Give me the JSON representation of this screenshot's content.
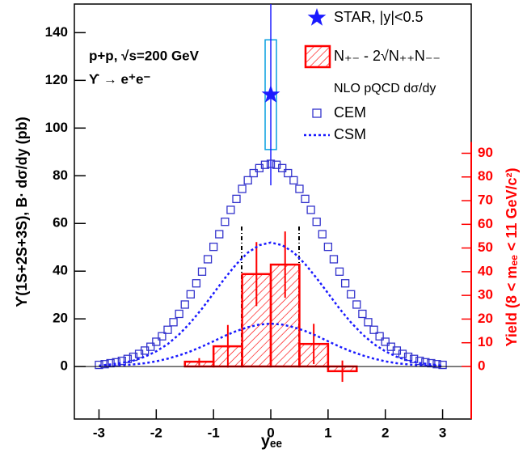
{
  "chart_data": {
    "type": "combo",
    "annotations": [
      "p+p, √s=200 GeV",
      "ϒ → e⁺e⁻"
    ],
    "x_label": "yₑₑ",
    "y_label": "ϒ(1S+2S+3S), B· dσ/dy (pb)",
    "y2_label": "Yield (8 < mₑₑ < 11 GeV/c²)",
    "legend_title": "NLO pQCD dσ/dy",
    "xlim": [
      -3.43,
      3.5
    ],
    "xticks": [
      -3,
      -2,
      -1,
      0,
      1,
      2,
      3
    ],
    "ylim": [
      -22,
      152
    ],
    "yticks": [
      0,
      20,
      40,
      60,
      80,
      100,
      120,
      140
    ],
    "y2lim": [
      -22.2,
      153
    ],
    "y2ticks": [
      0,
      10,
      20,
      30,
      40,
      50,
      60,
      70,
      80,
      90
    ],
    "series": [
      {
        "name": "STAR, |y|<0.5",
        "type": "point",
        "color": "#1a1aff",
        "x": [
          0
        ],
        "values": [
          114
        ],
        "errors": [
          38
        ],
        "sys_errors": [
          23
        ]
      },
      {
        "name": "N₊₋ - 2√N₊₊N₋₋",
        "type": "histogram",
        "axis": "y2",
        "color": "#ff0000",
        "bins": [
          -2,
          -1.5,
          -1,
          -0.5,
          0,
          0.5,
          1,
          1.5,
          2
        ],
        "values": [
          0,
          2,
          8.5,
          39,
          43,
          9.5,
          -2,
          0
        ],
        "errors": [
          0,
          1.5,
          9,
          13.5,
          14,
          8.5,
          4.5,
          0
        ]
      },
      {
        "name": "CEM",
        "type": "square",
        "color": "#3333cc",
        "x": [
          -3,
          -2.9,
          -2.8,
          -2.7,
          -2.6,
          -2.5,
          -2.4,
          -2.3,
          -2.2,
          -2.1,
          -2,
          -1.9,
          -1.8,
          -1.7,
          -1.6,
          -1.5,
          -1.4,
          -1.3,
          -1.2,
          -1.1,
          -1,
          -0.9,
          -0.8,
          -0.7,
          -0.6,
          -0.5,
          -0.4,
          -0.3,
          -0.2,
          -0.1,
          0,
          0.1,
          0.2,
          0.3,
          0.4,
          0.5,
          0.6,
          0.7,
          0.8,
          0.9,
          1,
          1.1,
          1.2,
          1.3,
          1.4,
          1.5,
          1.6,
          1.7,
          1.8,
          1.9,
          2,
          2.1,
          2.2,
          2.3,
          2.4,
          2.5,
          2.6,
          2.7,
          2.8,
          2.9,
          3
        ],
        "values": [
          0.7,
          1.0,
          1.4,
          1.8,
          2.4,
          3.2,
          4.1,
          5.3,
          6.7,
          8.3,
          10.4,
          12.7,
          15.4,
          18.6,
          22.1,
          26.0,
          30.3,
          34.9,
          39.8,
          45.0,
          50.2,
          55.5,
          60.7,
          65.7,
          70.3,
          74.5,
          78.1,
          81.1,
          83.2,
          84.6,
          85,
          84.6,
          83.2,
          81.1,
          78.1,
          74.5,
          70.3,
          65.7,
          60.7,
          55.5,
          50.2,
          45.0,
          39.8,
          34.9,
          30.3,
          26.0,
          22.1,
          18.6,
          15.4,
          12.7,
          10.4,
          8.3,
          6.7,
          5.3,
          4.1,
          3.2,
          2.4,
          1.8,
          1.4,
          1.0,
          0.7
        ]
      },
      {
        "name": "CSM",
        "type": "dotted",
        "color": "#1a1aff",
        "x": [
          -3,
          -2.8,
          -2.6,
          -2.4,
          -2.2,
          -2,
          -1.8,
          -1.6,
          -1.4,
          -1.2,
          -1,
          -0.8,
          -0.6,
          -0.4,
          -0.2,
          0,
          0.2,
          0.4,
          0.6,
          0.8,
          1,
          1.2,
          1.4,
          1.6,
          1.8,
          2,
          2.2,
          2.4,
          2.6,
          2.8,
          3
        ],
        "values": [
          0.4,
          0.9,
          1.5,
          2.5,
          4.1,
          6.4,
          9.4,
          13.5,
          18.5,
          24.3,
          30.7,
          37.1,
          43.0,
          47.8,
          50.9,
          52,
          50.9,
          47.8,
          43.0,
          37.1,
          30.7,
          24.3,
          18.5,
          13.5,
          9.4,
          6.4,
          4.1,
          2.5,
          1.5,
          0.9,
          0.4
        ]
      },
      {
        "type": "dotted",
        "color": "#1a1aff",
        "x": [
          -3,
          -2.8,
          -2.6,
          -2.4,
          -2.2,
          -2,
          -1.8,
          -1.6,
          -1.4,
          -1.2,
          -1,
          -0.8,
          -0.6,
          -0.4,
          -0.2,
          0,
          0.2,
          0.4,
          0.6,
          0.8,
          1,
          1.2,
          1.4,
          1.6,
          1.8,
          2,
          2.2,
          2.4,
          2.6,
          2.8,
          3
        ],
        "values": [
          0.1,
          0.3,
          0.5,
          0.9,
          1.4,
          2.2,
          3.3,
          4.7,
          6.4,
          8.4,
          10.6,
          12.9,
          14.9,
          16.5,
          17.6,
          18,
          17.6,
          16.5,
          14.9,
          12.9,
          10.6,
          8.4,
          6.4,
          4.7,
          3.3,
          2.2,
          1.4,
          0.9,
          0.5,
          0.3,
          0.1
        ]
      }
    ]
  }
}
